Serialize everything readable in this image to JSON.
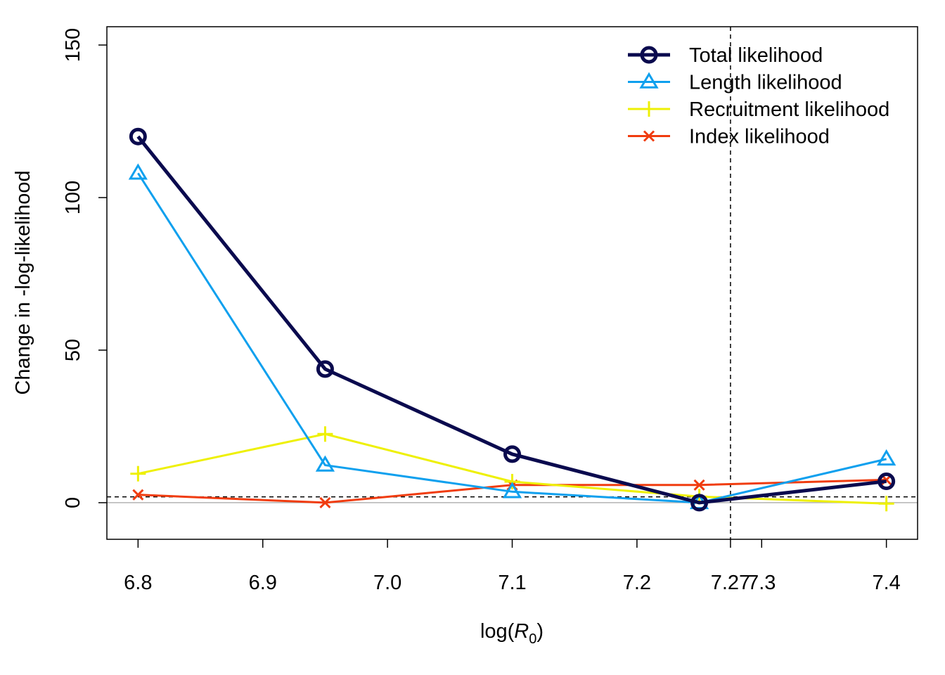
{
  "chart_data": {
    "type": "line",
    "title": "",
    "xlabel_prefix": "log(",
    "xlabel_var": "R",
    "xlabel_sub": "0",
    "xlabel_suffix": ")",
    "ylabel": "Change in -log-likelihood",
    "xlim": [
      6.775,
      7.425
    ],
    "ylim": [
      -12,
      156
    ],
    "x_ticks": [
      6.8,
      6.9,
      7.0,
      7.1,
      7.2,
      7.3,
      7.4
    ],
    "x_tick_labels": [
      "6.8",
      "6.9",
      "7.0",
      "7.1",
      "7.2",
      "7.3",
      "7.4"
    ],
    "extra_x_tick": 7.275,
    "extra_x_tick_label": "7.27",
    "y_ticks": [
      0,
      50,
      100,
      150
    ],
    "y_tick_labels": [
      "0",
      "50",
      "100",
      "150"
    ],
    "reference_hline": 1.92,
    "reference_vline": 7.275,
    "zero_line": 0,
    "legend_position": "top-right",
    "x": [
      6.8,
      6.95,
      7.1,
      7.25,
      7.4
    ],
    "series": [
      {
        "name": "Total likelihood",
        "color": "#0a0a4e",
        "marker": "circle",
        "values": [
          120,
          43.8,
          15.9,
          0,
          7
        ]
      },
      {
        "name": "Length likelihood",
        "color": "#0fa0ee",
        "marker": "triangle",
        "values": [
          108,
          12.3,
          3.6,
          0,
          14.3
        ]
      },
      {
        "name": "Recruitment likelihood",
        "color": "#eef005",
        "marker": "plus",
        "values": [
          9.5,
          22.5,
          6.9,
          2,
          -0.3
        ]
      },
      {
        "name": "Index likelihood",
        "color": "#f03c0f",
        "marker": "cross",
        "values": [
          2.6,
          0,
          5.8,
          5.8,
          7.5
        ]
      }
    ]
  }
}
